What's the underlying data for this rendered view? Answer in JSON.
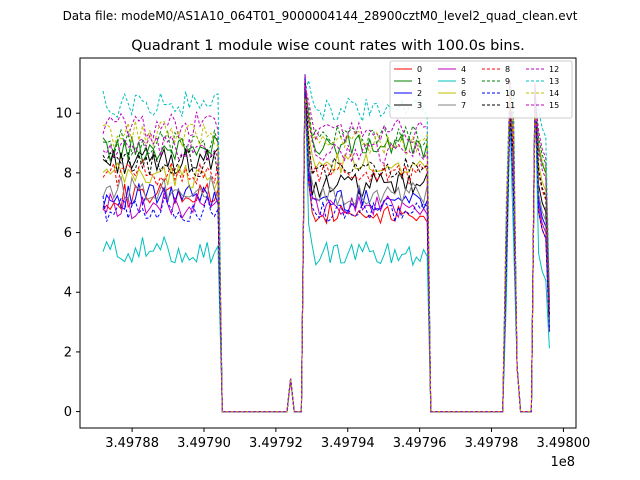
{
  "suptitle": "Data file: modeM0/AS1A10_064T01_9000004144_28900cztM0_level2_quad_clean.evt",
  "chart_data": {
    "type": "line",
    "title": "Quadrant 1 module wise count rates with 100.0s bins.",
    "xlabel": "",
    "ylabel": "",
    "x_offset_label": "1e8",
    "x_ticks": [
      3.49788,
      3.4979,
      3.49792,
      3.49794,
      3.49796,
      3.49798,
      3.498
    ],
    "x_tick_labels": [
      "3.49788",
      "3.49790",
      "3.49792",
      "3.49794",
      "3.49796",
      "3.49798",
      "3.49800"
    ],
    "xlim": [
      3.4978655,
      3.4980035
    ],
    "y_ticks": [
      0,
      2,
      4,
      6,
      8,
      10
    ],
    "y_tick_labels": [
      "0",
      "2",
      "4",
      "6",
      "8",
      "10"
    ],
    "ylim": [
      -0.55,
      11.85
    ],
    "grid": false,
    "legend_position": "top-right",
    "legend_columns": 4,
    "segments": [
      {
        "x_start": 3.4978719,
        "x_end": 3.4979041,
        "group": "a"
      },
      {
        "x_start": 3.4979051,
        "x_end": 3.4979231,
        "zero": true
      },
      {
        "x_start": 3.4979241,
        "x_end": 3.4979241,
        "spike": 1.1
      },
      {
        "x_start": 3.4979251,
        "x_end": 3.4979271,
        "zero": true
      },
      {
        "x_start": 3.4979281,
        "x_end": 3.4979621,
        "group": "b"
      },
      {
        "x_start": 3.4979631,
        "x_end": 3.4979831,
        "zero": true
      },
      {
        "x_start": 3.4979841,
        "x_end": 3.4979871,
        "group": "c"
      },
      {
        "x_start": 3.4979881,
        "x_end": 3.4979911,
        "zero": true
      },
      {
        "x_start": 3.4979921,
        "x_end": 3.4979961,
        "group": "d"
      }
    ],
    "series": [
      {
        "name": "0",
        "color": "#ff0000",
        "dash": "solid",
        "level_a": 7.2,
        "level_b": 6.7
      },
      {
        "name": "1",
        "color": "#008000",
        "dash": "solid",
        "level_a": 8.8,
        "level_b": 8.9
      },
      {
        "name": "2",
        "color": "#0000ff",
        "dash": "solid",
        "level_a": 7.2,
        "level_b": 7.1
      },
      {
        "name": "3",
        "color": "#000000",
        "dash": "solid",
        "level_a": 8.4,
        "level_b": 7.6
      },
      {
        "name": "4",
        "color": "#bf00bf",
        "dash": "solid",
        "level_a": 6.9,
        "level_b": 6.9
      },
      {
        "name": "5",
        "color": "#00bfbf",
        "dash": "solid",
        "level_a": 5.4,
        "level_b": 5.3
      },
      {
        "name": "6",
        "color": "#bfbf00",
        "dash": "solid",
        "level_a": 7.9,
        "level_b": 8.3
      },
      {
        "name": "7",
        "color": "#808080",
        "dash": "solid",
        "level_a": 7.5,
        "level_b": 7.3
      },
      {
        "name": "8",
        "color": "#ff0000",
        "dash": "dashed",
        "level_a": 8.0,
        "level_b": 8.0
      },
      {
        "name": "9",
        "color": "#008000",
        "dash": "dashed",
        "level_a": 9.0,
        "level_b": 9.2
      },
      {
        "name": "10",
        "color": "#0000ff",
        "dash": "dashed",
        "level_a": 6.8,
        "level_b": 6.7
      },
      {
        "name": "11",
        "color": "#000000",
        "dash": "dashed",
        "level_a": 8.3,
        "level_b": 8.1
      },
      {
        "name": "12",
        "color": "#bf00bf",
        "dash": "dashed",
        "level_a": 9.6,
        "level_b": 9.4
      },
      {
        "name": "13",
        "color": "#00bfbf",
        "dash": "dashed",
        "level_a": 10.3,
        "level_b": 10.1
      },
      {
        "name": "14",
        "color": "#bfbf00",
        "dash": "dashed",
        "level_a": 9.3,
        "level_b": 9.0
      },
      {
        "name": "15",
        "color": "#bf00bf",
        "dash": "dashed",
        "level_a": 8.8,
        "level_b": 8.7
      }
    ],
    "peak_values": {
      "b_first": 11.3,
      "c_peak": 11.1,
      "d_first": 11.0
    }
  }
}
